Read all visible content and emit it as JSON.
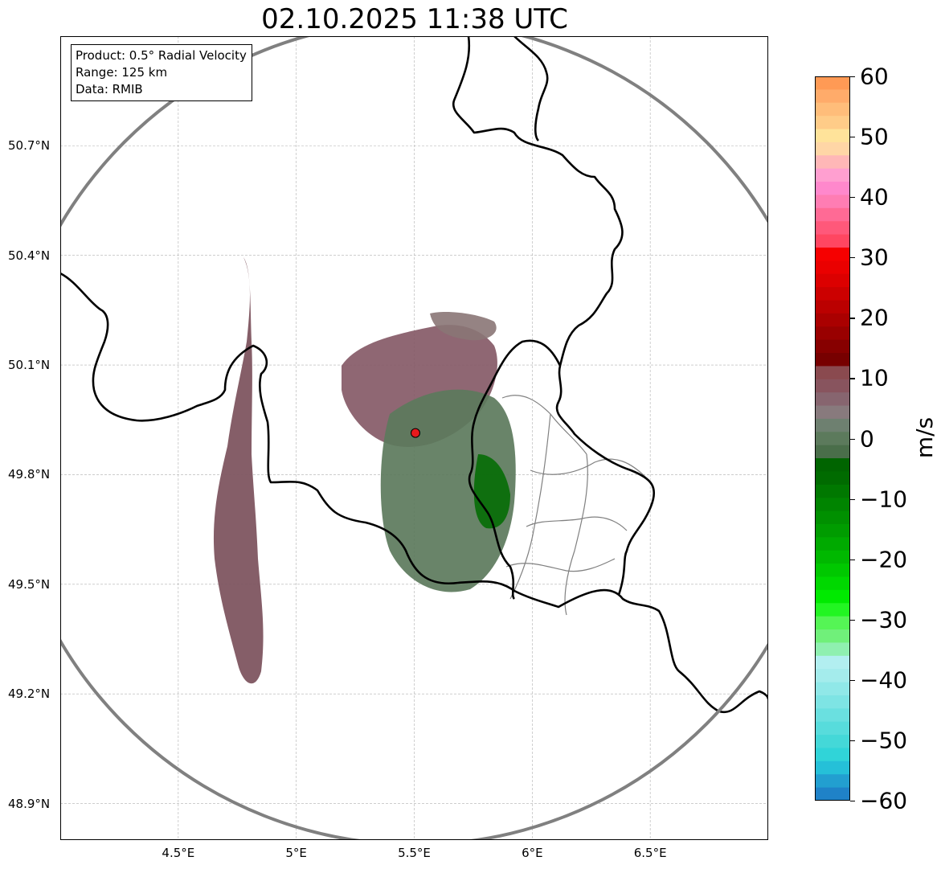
{
  "title": "02.10.2025 11:38 UTC",
  "info_box": {
    "product": "Product: 0.5° Radial Velocity",
    "range": "Range: 125 km",
    "data": "Data: RMIB"
  },
  "map": {
    "lon_range": [
      4.0,
      7.0
    ],
    "lat_range": [
      48.8,
      51.0
    ],
    "lat_ticks": [
      {
        "value": 50.7,
        "label": "50.7°N"
      },
      {
        "value": 50.4,
        "label": "50.4°N"
      },
      {
        "value": 50.1,
        "label": "50.1°N"
      },
      {
        "value": 49.8,
        "label": "49.8°N"
      },
      {
        "value": 49.5,
        "label": "49.5°N"
      },
      {
        "value": 49.2,
        "label": "49.2°N"
      },
      {
        "value": 48.9,
        "label": "48.9°N"
      }
    ],
    "lon_ticks": [
      {
        "value": 4.5,
        "label": "4.5°E"
      },
      {
        "value": 5.0,
        "label": "5°E"
      },
      {
        "value": 5.5,
        "label": "5.5°E"
      },
      {
        "value": 6.0,
        "label": "6°E"
      },
      {
        "value": 6.5,
        "label": "6.5°E"
      }
    ],
    "radar_site": {
      "lon": 5.505,
      "lat": 49.914,
      "color": "#e8191c"
    },
    "range_ring_color": "#808080",
    "grid": true,
    "border_color": "#000000",
    "admin_border_color": "#808080"
  },
  "colorbar": {
    "units": "m/s",
    "min": -60,
    "max": 60,
    "ticks": [
      {
        "value": 60,
        "label": "60"
      },
      {
        "value": 50,
        "label": "50"
      },
      {
        "value": 40,
        "label": "40"
      },
      {
        "value": 30,
        "label": "30"
      },
      {
        "value": 20,
        "label": "20"
      },
      {
        "value": 10,
        "label": "10"
      },
      {
        "value": 0,
        "label": "0"
      },
      {
        "value": -10,
        "label": "−10"
      },
      {
        "value": -20,
        "label": "−20"
      },
      {
        "value": -30,
        "label": "−30"
      },
      {
        "value": -40,
        "label": "−40"
      },
      {
        "value": -50,
        "label": "−50"
      },
      {
        "value": -60,
        "label": "−60"
      }
    ],
    "colors_top_to_bottom": [
      "#ff9a55",
      "#ffab6a",
      "#ffbd7a",
      "#ffcc88",
      "#ffe39a",
      "#ffd6a6",
      "#ffb7b7",
      "#ff9fd0",
      "#ff88cc",
      "#ff7db3",
      "#ff6a95",
      "#ff587a",
      "#ff4661",
      "#f60000",
      "#ea0000",
      "#dc0000",
      "#cc0000",
      "#bb0000",
      "#aa0000",
      "#990000",
      "#870000",
      "#770000",
      "#8a4a4f",
      "#88545e",
      "#87656f",
      "#887a7d",
      "#6e8070",
      "#5c7a5c",
      "#4a6e4a",
      "#006400",
      "#006b00",
      "#007800",
      "#008400",
      "#009000",
      "#009c00",
      "#00aa00",
      "#00b800",
      "#00c800",
      "#00d800",
      "#00ea00",
      "#22f522",
      "#55f555",
      "#70f07a",
      "#8ff0b0",
      "#b2eff0",
      "#a4ecec",
      "#90e8e8",
      "#7ee4e4",
      "#6ae0e0",
      "#57dcdc",
      "#44d8d8",
      "#30d4d8",
      "#25c0d8",
      "#229fd0",
      "#1f82c8"
    ]
  }
}
